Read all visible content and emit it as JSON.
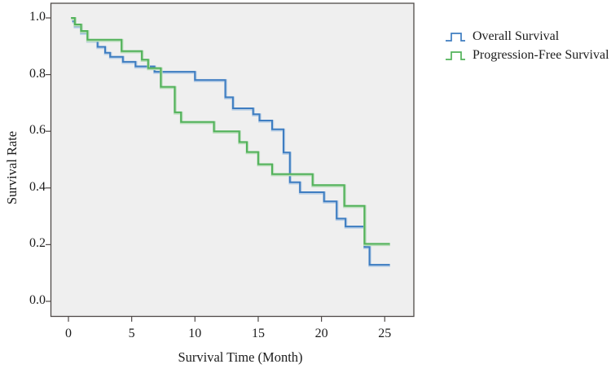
{
  "chart_data": {
    "type": "line",
    "subtype": "kaplan_meier_step",
    "title": "",
    "xlabel": "Survival Time (Month)",
    "ylabel": "Survival Rate",
    "xlim": [
      0,
      25
    ],
    "ylim": [
      0.0,
      1.0
    ],
    "xticks": [
      "0",
      "5",
      "10",
      "15",
      "20",
      "25"
    ],
    "yticks": [
      "1.0",
      "0.8",
      "0.6",
      "0.4",
      "0.2",
      "0.0"
    ],
    "grid": false,
    "plot_background": "#EFEFEF",
    "axis_color": "#4F4A48",
    "legend_position": "right-top",
    "series": [
      {
        "name": "Overall Survival",
        "color": "#3E7DC1",
        "halo_color": "#B9CFE6",
        "steps": [
          [
            0.3,
            0.988
          ],
          [
            0.5,
            0.971
          ],
          [
            1.0,
            0.948
          ],
          [
            1.5,
            0.92
          ],
          [
            2.3,
            0.898
          ],
          [
            2.9,
            0.877
          ],
          [
            3.3,
            0.863
          ],
          [
            4.3,
            0.845
          ],
          [
            5.3,
            0.829
          ],
          [
            6.8,
            0.81
          ],
          [
            10.0,
            0.781
          ],
          [
            12.4,
            0.72
          ],
          [
            13.0,
            0.681
          ],
          [
            14.6,
            0.66
          ],
          [
            15.1,
            0.638
          ],
          [
            16.1,
            0.607
          ],
          [
            17.0,
            0.525
          ],
          [
            17.5,
            0.42
          ],
          [
            18.3,
            0.385
          ],
          [
            20.2,
            0.353
          ],
          [
            21.2,
            0.292
          ],
          [
            21.9,
            0.264
          ],
          [
            23.4,
            0.192
          ],
          [
            23.8,
            0.129
          ],
          [
            25.4,
            0.129
          ]
        ]
      },
      {
        "name": "Progression-Free Survival",
        "color": "#52B25A",
        "halo_color": "#B7DCB8",
        "steps": [
          [
            0.2,
            1.0
          ],
          [
            0.5,
            0.977
          ],
          [
            1.0,
            0.954
          ],
          [
            1.5,
            0.923
          ],
          [
            4.2,
            0.883
          ],
          [
            5.8,
            0.853
          ],
          [
            6.3,
            0.823
          ],
          [
            7.3,
            0.757
          ],
          [
            8.4,
            0.667
          ],
          [
            8.9,
            0.633
          ],
          [
            11.5,
            0.6
          ],
          [
            13.5,
            0.562
          ],
          [
            14.1,
            0.527
          ],
          [
            15.0,
            0.484
          ],
          [
            16.1,
            0.449
          ],
          [
            19.3,
            0.41
          ],
          [
            21.8,
            0.337
          ],
          [
            23.4,
            0.203
          ],
          [
            25.4,
            0.203
          ]
        ]
      }
    ]
  }
}
